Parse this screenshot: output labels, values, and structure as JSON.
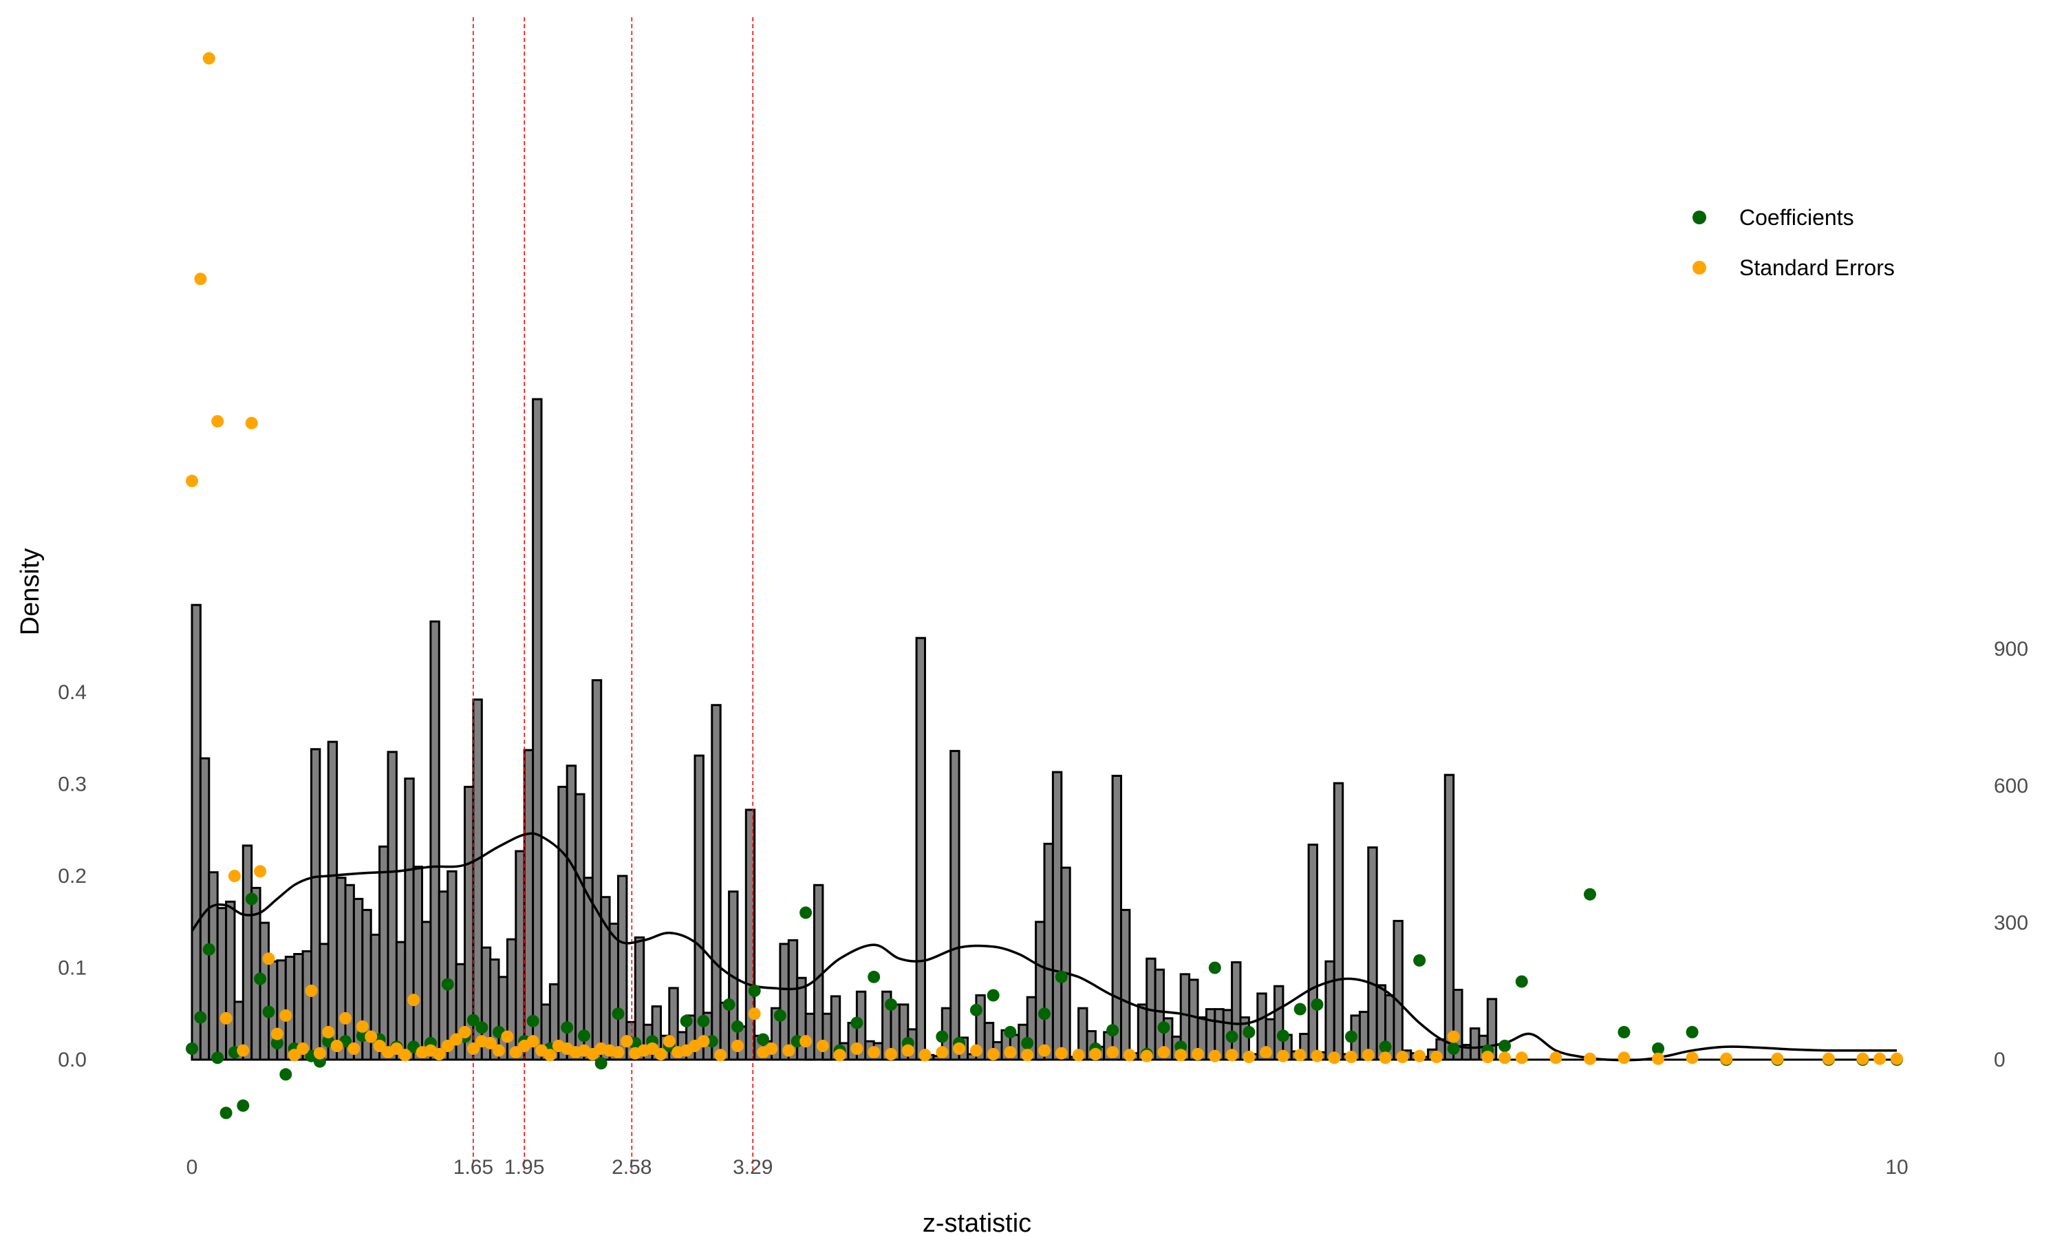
{
  "chart_data": {
    "type": "bar",
    "title": "",
    "xlabel": "z-statistic",
    "ylabel": "Density",
    "xlim": [
      0,
      10
    ],
    "ylim_left": [
      -0.12,
      1.1
    ],
    "ylim_right": [
      -150,
      1100
    ],
    "grid": false,
    "legend_position": "top-right",
    "x_ticks": [
      {
        "value": 0,
        "label": "0"
      },
      {
        "value": 1.65,
        "label": "1.65"
      },
      {
        "value": 1.95,
        "label": "1.95"
      },
      {
        "value": 2.58,
        "label": "2.58"
      },
      {
        "value": 3.29,
        "label": "3.29"
      },
      {
        "value": 10,
        "label": "10"
      }
    ],
    "left_ticks": [
      {
        "value": 0.0,
        "label": "0.0"
      },
      {
        "value": 0.1,
        "label": "0.1"
      },
      {
        "value": 0.2,
        "label": "0.2"
      },
      {
        "value": 0.3,
        "label": "0.3"
      },
      {
        "value": 0.4,
        "label": "0.4"
      }
    ],
    "right_ticks": [
      {
        "value": 0,
        "label": "0"
      },
      {
        "value": 300,
        "label": "300"
      },
      {
        "value": 600,
        "label": "600"
      },
      {
        "value": 900,
        "label": "900"
      }
    ],
    "reference_lines": [
      1.65,
      1.95,
      2.58,
      3.29
    ],
    "histogram": {
      "bin_width": 0.05,
      "values": [
        0.495,
        0.328,
        0.204,
        0.165,
        0.172,
        0.063,
        0.233,
        0.187,
        0.149,
        0.107,
        0.108,
        0.112,
        0.115,
        0.118,
        0.338,
        0.126,
        0.346,
        0.198,
        0.19,
        0.175,
        0.163,
        0.136,
        0.232,
        0.335,
        0.128,
        0.306,
        0.21,
        0.15,
        0.477,
        0.183,
        0.205,
        0.104,
        0.297,
        0.392,
        0.122,
        0.109,
        0.09,
        0.131,
        0.227,
        0.337,
        0.719,
        0.06,
        0.082,
        0.297,
        0.32,
        0.289,
        0.198,
        0.413,
        0.177,
        0.148,
        0.2,
        0.041,
        0.133,
        0.038,
        0.058,
        0.026,
        0.078,
        0.03,
        0.048,
        0.331,
        0.051,
        0.386,
        0.062,
        0.183,
        0.036,
        0.272,
        0.026,
        0.02,
        0.056,
        0.126,
        0.13,
        0.089,
        0.05,
        0.19,
        0.05,
        0.069,
        0.018,
        0.04,
        0.074,
        0.02,
        0.018,
        0.074,
        0.06,
        0.06,
        0.033,
        0.459,
        0.005,
        0.004,
        0.056,
        0.336,
        0.024,
        0.006,
        0.07,
        0.04,
        0.019,
        0.032,
        0.027,
        0.038,
        0.068,
        0.15,
        0.235,
        0.313,
        0.209,
        0.003,
        0.056,
        0.031,
        0.014,
        0.03,
        0.309,
        0.163,
        0.007,
        0.06,
        0.11,
        0.098,
        0.045,
        0.025,
        0.093,
        0.087,
        0.046,
        0.055,
        0.055,
        0.054,
        0.106,
        0.046,
        0.006,
        0.072,
        0.044,
        0.08,
        0.027,
        0.009,
        0.028,
        0.234,
        0.008,
        0.107,
        0.301,
        0.006,
        0.048,
        0.052,
        0.231,
        0.081,
        0.07,
        0.151,
        0.01,
        0.007,
        0.003,
        0.011,
        0.022,
        0.31,
        0.076,
        0.016,
        0.034,
        0.026,
        0.066
      ],
      "bin_starts": [
        0.0,
        0.05,
        0.1,
        0.15,
        0.2,
        0.25,
        0.3,
        0.35,
        0.4,
        0.45,
        0.5,
        0.55,
        0.6,
        0.65,
        0.7,
        0.75,
        0.8,
        0.85,
        0.9,
        0.95,
        1.0,
        1.05,
        1.1,
        1.15,
        1.2,
        1.25,
        1.3,
        1.35,
        1.4,
        1.45,
        1.5,
        1.55,
        1.6,
        1.65,
        1.7,
        1.75,
        1.8,
        1.85,
        1.9,
        1.95,
        2.0,
        2.05,
        2.1,
        2.15,
        2.2,
        2.25,
        2.3,
        2.35,
        2.4,
        2.45,
        2.5,
        2.55,
        2.6,
        2.65,
        2.7,
        2.75,
        2.8,
        2.85,
        2.9,
        2.95,
        3.0,
        3.05,
        3.1,
        3.15,
        3.2,
        3.25,
        3.3,
        3.35,
        3.4,
        3.45,
        3.5,
        3.55,
        3.6,
        3.65,
        3.7,
        3.75,
        3.8,
        3.85,
        3.9,
        3.95,
        4.0,
        4.05,
        4.1,
        4.15,
        4.2,
        4.25,
        4.3,
        4.35,
        4.4,
        4.45,
        4.5,
        4.55,
        4.6,
        4.65,
        4.7,
        4.75,
        4.8,
        4.85,
        4.9,
        4.95,
        5.0,
        5.05,
        5.1,
        5.15,
        5.2,
        5.25,
        5.3,
        5.35,
        5.4,
        5.45,
        5.5,
        5.55,
        5.6,
        5.65,
        5.7,
        5.75,
        5.8,
        5.85,
        5.9,
        5.95,
        6.0,
        6.05,
        6.1,
        6.15,
        6.2,
        6.25,
        6.3,
        6.35,
        6.4,
        6.45,
        6.5,
        6.55,
        6.6,
        6.65,
        6.7,
        6.75,
        6.8,
        6.85,
        6.9,
        6.95,
        7.0,
        7.05,
        7.1,
        7.15,
        7.2,
        7.25,
        7.3,
        7.35,
        7.4,
        7.45,
        7.5,
        7.55,
        7.6,
        7.65,
        7.7,
        7.75
      ]
    },
    "density_curve": {
      "x": [
        0.0,
        0.1,
        0.2,
        0.3,
        0.4,
        0.5,
        0.6,
        0.7,
        0.8,
        1.0,
        1.2,
        1.4,
        1.6,
        1.8,
        1.95,
        2.05,
        2.2,
        2.35,
        2.5,
        2.65,
        2.8,
        2.95,
        3.1,
        3.25,
        3.4,
        3.6,
        3.8,
        4.0,
        4.15,
        4.3,
        4.5,
        4.7,
        4.85,
        5.0,
        5.2,
        5.4,
        5.6,
        5.8,
        6.0,
        6.2,
        6.4,
        6.6,
        6.8,
        7.0,
        7.2,
        7.35,
        7.5,
        7.7,
        7.85,
        8.0,
        8.15,
        8.3,
        8.5,
        8.65,
        8.8,
        9.0,
        9.2,
        9.4,
        9.6,
        9.8,
        10.0
      ],
      "y": [
        0.14,
        0.165,
        0.168,
        0.158,
        0.16,
        0.175,
        0.19,
        0.198,
        0.2,
        0.203,
        0.205,
        0.21,
        0.212,
        0.232,
        0.245,
        0.243,
        0.22,
        0.17,
        0.13,
        0.13,
        0.138,
        0.128,
        0.1,
        0.083,
        0.078,
        0.08,
        0.11,
        0.125,
        0.11,
        0.108,
        0.122,
        0.123,
        0.115,
        0.1,
        0.09,
        0.07,
        0.055,
        0.05,
        0.042,
        0.04,
        0.058,
        0.08,
        0.088,
        0.075,
        0.04,
        0.02,
        0.013,
        0.018,
        0.028,
        0.01,
        0.003,
        0.0,
        0.0,
        0.004,
        0.01,
        0.014,
        0.013,
        0.011,
        0.01,
        0.01,
        0.01
      ]
    },
    "series": [
      {
        "name": "Coefficients",
        "color": "#006400",
        "x": [
          0.0,
          0.05,
          0.1,
          0.15,
          0.2,
          0.25,
          0.3,
          0.35,
          0.4,
          0.45,
          0.5,
          0.55,
          0.6,
          0.7,
          0.75,
          0.8,
          0.9,
          1.0,
          1.1,
          1.2,
          1.3,
          1.4,
          1.5,
          1.6,
          1.65,
          1.7,
          1.8,
          1.95,
          2.0,
          2.1,
          2.2,
          2.3,
          2.4,
          2.5,
          2.6,
          2.7,
          2.8,
          2.9,
          3.0,
          3.05,
          3.15,
          3.2,
          3.3,
          3.35,
          3.45,
          3.55,
          3.6,
          3.7,
          3.8,
          3.9,
          4.0,
          4.1,
          4.2,
          4.3,
          4.4,
          4.5,
          4.6,
          4.7,
          4.8,
          4.9,
          5.0,
          5.1,
          5.3,
          5.4,
          5.6,
          5.7,
          5.8,
          6.0,
          6.1,
          6.2,
          6.4,
          6.5,
          6.6,
          6.8,
          7.0,
          7.2,
          7.4,
          7.6,
          7.7,
          7.8,
          8.2,
          8.4,
          8.6,
          8.8,
          9.0,
          9.3,
          9.6,
          9.8,
          10.0
        ],
        "y": [
          0.012,
          0.046,
          0.12,
          0.002,
          -0.058,
          0.008,
          -0.05,
          0.175,
          0.088,
          0.052,
          0.018,
          -0.016,
          0.012,
          0.004,
          -0.002,
          0.02,
          0.02,
          0.026,
          0.022,
          0.014,
          0.014,
          0.018,
          0.082,
          0.025,
          0.043,
          0.035,
          0.03,
          0.02,
          0.042,
          0.012,
          0.035,
          0.026,
          -0.004,
          0.05,
          0.018,
          0.02,
          0.015,
          0.042,
          0.042,
          0.02,
          0.06,
          0.036,
          0.075,
          0.022,
          0.048,
          0.02,
          0.16,
          0.015,
          0.01,
          0.04,
          0.09,
          0.06,
          0.018,
          0.005,
          0.025,
          0.018,
          0.054,
          0.07,
          0.03,
          0.018,
          0.05,
          0.09,
          0.012,
          0.032,
          0.006,
          0.035,
          0.014,
          0.1,
          0.025,
          0.03,
          0.026,
          0.055,
          0.06,
          0.025,
          0.014,
          0.108,
          0.012,
          0.01,
          0.015,
          0.085,
          0.18,
          0.03,
          0.012,
          0.03,
          0.0,
          0.0,
          0.0,
          0.0,
          0.0
        ]
      },
      {
        "name": "Standard Errors",
        "color": "#FFA500",
        "x": [
          0.0,
          0.05,
          0.1,
          0.15,
          0.2,
          0.25,
          0.3,
          0.35,
          0.4,
          0.45,
          0.5,
          0.55,
          0.6,
          0.65,
          0.7,
          0.75,
          0.8,
          0.85,
          0.9,
          0.95,
          1.0,
          1.05,
          1.1,
          1.15,
          1.2,
          1.25,
          1.3,
          1.35,
          1.4,
          1.45,
          1.5,
          1.55,
          1.6,
          1.65,
          1.7,
          1.75,
          1.8,
          1.85,
          1.9,
          1.95,
          2.0,
          2.05,
          2.1,
          2.15,
          2.2,
          2.25,
          2.3,
          2.35,
          2.4,
          2.45,
          2.5,
          2.55,
          2.6,
          2.65,
          2.7,
          2.75,
          2.8,
          2.85,
          2.9,
          2.95,
          3.0,
          3.1,
          3.2,
          3.3,
          3.35,
          3.4,
          3.5,
          3.6,
          3.7,
          3.8,
          3.9,
          4.0,
          4.1,
          4.2,
          4.3,
          4.4,
          4.5,
          4.6,
          4.7,
          4.8,
          4.9,
          5.0,
          5.1,
          5.2,
          5.3,
          5.4,
          5.5,
          5.6,
          5.7,
          5.8,
          5.9,
          6.0,
          6.1,
          6.2,
          6.3,
          6.4,
          6.5,
          6.6,
          6.7,
          6.8,
          6.9,
          7.0,
          7.1,
          7.2,
          7.3,
          7.4,
          7.6,
          7.7,
          7.8,
          8.0,
          8.2,
          8.4,
          8.6,
          8.8,
          9.0,
          9.3,
          9.6,
          9.8,
          9.9,
          10.0
        ],
        "y": [
          0.63,
          0.85,
          1.09,
          0.695,
          0.045,
          0.2,
          0.01,
          0.693,
          0.205,
          0.11,
          0.028,
          0.048,
          0.005,
          0.012,
          0.075,
          0.007,
          0.03,
          0.015,
          0.045,
          0.012,
          0.036,
          0.025,
          0.015,
          0.008,
          0.012,
          0.005,
          0.065,
          0.008,
          0.01,
          0.006,
          0.015,
          0.022,
          0.03,
          0.012,
          0.02,
          0.018,
          0.01,
          0.025,
          0.008,
          0.015,
          0.02,
          0.01,
          0.005,
          0.015,
          0.012,
          0.008,
          0.01,
          0.006,
          0.012,
          0.01,
          0.008,
          0.02,
          0.007,
          0.01,
          0.012,
          0.006,
          0.02,
          0.008,
          0.01,
          0.015,
          0.02,
          0.005,
          0.015,
          0.05,
          0.008,
          0.012,
          0.01,
          0.02,
          0.015,
          0.005,
          0.012,
          0.008,
          0.006,
          0.01,
          0.005,
          0.008,
          0.012,
          0.01,
          0.006,
          0.008,
          0.005,
          0.01,
          0.007,
          0.005,
          0.006,
          0.008,
          0.005,
          0.004,
          0.008,
          0.005,
          0.006,
          0.004,
          0.005,
          0.003,
          0.008,
          0.004,
          0.005,
          0.004,
          0.002,
          0.003,
          0.005,
          0.002,
          0.003,
          0.004,
          0.003,
          0.025,
          0.003,
          0.002,
          0.002,
          0.002,
          0.001,
          0.002,
          0.001,
          0.002,
          0.001,
          0.001,
          0.001,
          0.001,
          0.001,
          0.001
        ]
      }
    ],
    "legend": [
      {
        "label": "Coefficients",
        "color": "#006400"
      },
      {
        "label": "Standard Errors",
        "color": "#FFA500"
      }
    ]
  }
}
